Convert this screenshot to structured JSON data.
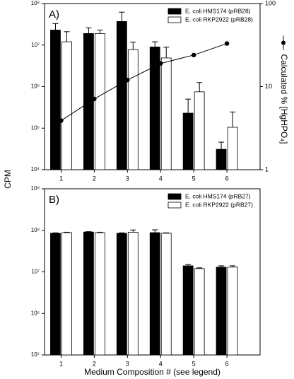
{
  "chart_data": [
    {
      "type": "bar",
      "title": "A)",
      "ylabel": "CPM",
      "y2label": "Calculated % [HgHPO₄]",
      "log_scale": true,
      "categories": [
        "1",
        "2",
        "3",
        "4",
        "5",
        "6"
      ],
      "ylim": [
        10000,
        100000000
      ],
      "yticks": [
        {
          "value": 10000,
          "label": "10⁴"
        },
        {
          "value": 100000,
          "label": "10⁵"
        },
        {
          "value": 1000000,
          "label": "10⁶"
        },
        {
          "value": 10000000,
          "label": "10⁷"
        },
        {
          "value": 100000000,
          "label": "10⁸"
        }
      ],
      "y2lim": [
        1,
        100
      ],
      "y2ticks": [
        1,
        10,
        100
      ],
      "series": [
        {
          "name": "E. coli HMS174 (pRB28)",
          "color": "#000000",
          "values": [
            23000000,
            19000000,
            37000000,
            9000000,
            230000,
            31000
          ],
          "errors": [
            10000000,
            7000000,
            25000000,
            3000000,
            270000,
            15000
          ]
        },
        {
          "name": "E. coli RKP2922 (pRB28)",
          "color": "#ffffff",
          "values": [
            12000000,
            19000000,
            7800000,
            4900000,
            750000,
            105000
          ],
          "errors": [
            9000000,
            4000000,
            4000000,
            4000000,
            500000,
            140000
          ]
        },
        {
          "type": "line",
          "axis": "y2",
          "color": "#000000",
          "values": [
            3.9,
            7.1,
            12,
            19,
            24,
            33
          ]
        }
      ]
    },
    {
      "type": "bar",
      "title": "B)",
      "xlabel": "Medium Composition # (see legend)",
      "log_scale": true,
      "categories": [
        "1",
        "2",
        "3",
        "4",
        "5",
        "6"
      ],
      "ylim": [
        100000,
        1000000000
      ],
      "yticks": [
        {
          "value": 100000,
          "label": "10⁵"
        },
        {
          "value": 1000000,
          "label": "10⁶"
        },
        {
          "value": 10000000,
          "label": "10⁷"
        },
        {
          "value": 100000000,
          "label": "10⁸"
        },
        {
          "value": 1000000000,
          "label": "10⁹"
        }
      ],
      "series": [
        {
          "name": "E. coli HMS174 (pRB27)",
          "color": "#000000",
          "values": [
            85000000,
            91000000,
            85000000,
            88000000,
            14000000,
            13000000
          ],
          "errors": [
            2000000,
            2000000,
            2000000,
            15000000,
            1000000,
            1000000
          ]
        },
        {
          "name": "E. coli RKP2922 (pRB27)",
          "color": "#ffffff",
          "values": [
            88000000,
            88000000,
            90000000,
            85000000,
            12000000,
            13000000
          ],
          "errors": [
            2000000,
            2000000,
            12000000,
            2000000,
            500000,
            1000000
          ]
        }
      ]
    }
  ]
}
